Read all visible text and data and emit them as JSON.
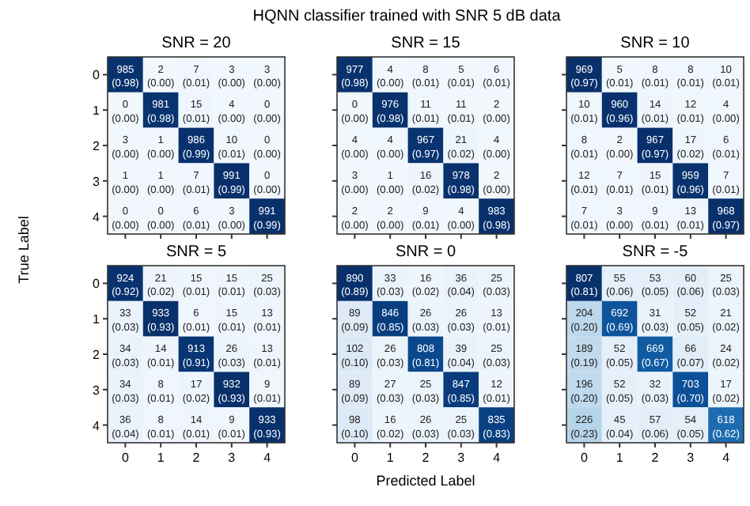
{
  "chart_data": [
    {
      "type": "heatmap",
      "title": "SNR = 20",
      "data_labels": true,
      "ylabel": "True Label",
      "tick_labels": "y",
      "categories": [
        "0",
        "1",
        "2",
        "3",
        "4"
      ],
      "y_categories": [
        "0",
        "1",
        "2",
        "3",
        "4"
      ],
      "cells": [
        [
          985,
          2,
          7,
          3,
          3
        ],
        [
          0,
          981,
          15,
          4,
          0
        ],
        [
          3,
          1,
          986,
          10,
          0
        ],
        [
          1,
          1,
          7,
          991,
          0
        ],
        [
          0,
          0,
          6,
          3,
          991
        ]
      ],
      "annotations": [
        "HQNN classifier trained with SNR 5 dB data",
        "(0.98)",
        "(0.00)",
        "(0.01)",
        "(0.00)",
        "(0.00)",
        "(0.00)",
        "(0.98)",
        "(0.01)",
        "(0.00)",
        "(0.00)",
        "(0.00)",
        "(0.00)",
        "(0.99)",
        "(0.01)",
        "(0.00)",
        "(0.00)",
        "(0.00)",
        "(0.01)",
        "(0.99)",
        "(0.00)",
        "(0.00)",
        "(0.00)",
        "(0.01)",
        "(0.00)",
        "(0.99)"
      ]
    },
    {
      "type": "heatmap",
      "title": "SNR = 15",
      "data_labels": true,
      "tick_labels": false,
      "categories": [
        "0",
        "1",
        "2",
        "3",
        "4"
      ],
      "y_categories": [
        "0",
        "1",
        "2",
        "3",
        "4"
      ],
      "cells": [
        [
          977,
          4,
          8,
          5,
          6
        ],
        [
          0,
          976,
          11,
          11,
          2
        ],
        [
          4,
          4,
          967,
          21,
          4
        ],
        [
          3,
          1,
          16,
          978,
          2
        ],
        [
          2,
          2,
          9,
          4,
          983
        ]
      ],
      "annotations": [
        "(0.98)",
        "(0.00)",
        "(0.01)",
        "(0.01)",
        "(0.01)",
        "(0.00)",
        "(0.98)",
        "(0.01)",
        "(0.01)",
        "(0.00)",
        "(0.00)",
        "(0.00)",
        "(0.97)",
        "(0.02)",
        "(0.00)",
        "(0.00)",
        "(0.00)",
        "(0.02)",
        "(0.98)",
        "(0.00)",
        "(0.00)",
        "(0.00)",
        "(0.01)",
        "(0.00)",
        "(0.98)"
      ]
    },
    {
      "type": "heatmap",
      "title": "SNR = 10",
      "data_labels": true,
      "tick_labels": false,
      "categories": [
        "0",
        "1",
        "2",
        "3",
        "4"
      ],
      "y_categories": [
        "0",
        "1",
        "2",
        "3",
        "4"
      ],
      "cells": [
        [
          969,
          5,
          8,
          8,
          10
        ],
        [
          10,
          960,
          14,
          12,
          4
        ],
        [
          8,
          2,
          967,
          17,
          6
        ],
        [
          12,
          7,
          15,
          959,
          7
        ],
        [
          7,
          3,
          9,
          13,
          968
        ]
      ],
      "annotations": [
        "(0.97)",
        "(0.01)",
        "(0.01)",
        "(0.01)",
        "(0.01)",
        "(0.01)",
        "(0.96)",
        "(0.01)",
        "(0.01)",
        "(0.00)",
        "(0.01)",
        "(0.00)",
        "(0.97)",
        "(0.02)",
        "(0.01)",
        "(0.01)",
        "(0.01)",
        "(0.01)",
        "(0.96)",
        "(0.01)",
        "(0.01)",
        "(0.00)",
        "(0.01)",
        "(0.01)",
        "(0.97)"
      ]
    },
    {
      "type": "heatmap",
      "title": "SNR = 5",
      "data_labels": true,
      "categories": [
        "0",
        "1",
        "2",
        "3",
        "4"
      ],
      "y_categories": [
        "0",
        "1",
        "2",
        "3",
        "4"
      ],
      "cells": [
        [
          924,
          21,
          15,
          15,
          25
        ],
        [
          33,
          933,
          6,
          15,
          13
        ],
        [
          34,
          14,
          913,
          26,
          13
        ],
        [
          34,
          8,
          17,
          932,
          9
        ],
        [
          36,
          8,
          14,
          9,
          933
        ]
      ],
      "annotations": [
        "(0.92)",
        "(0.02)",
        "(0.01)",
        "(0.01)",
        "(0.03)",
        "(0.03)",
        "(0.93)",
        "(0.01)",
        "(0.01)",
        "(0.01)",
        "(0.03)",
        "(0.01)",
        "(0.91)",
        "(0.03)",
        "(0.01)",
        "(0.03)",
        "(0.01)",
        "(0.02)",
        "(0.93)",
        "(0.01)",
        "(0.04)",
        "(0.01)",
        "(0.01)",
        "(0.01)",
        "(0.93)"
      ]
    },
    {
      "type": "heatmap",
      "title": "SNR = 0",
      "data_labels": true,
      "xlabel": "Predicted Label",
      "tick_labels": "x",
      "categories": [
        "0",
        "1",
        "2",
        "3",
        "4"
      ],
      "y_categories": [
        "0",
        "1",
        "2",
        "3",
        "4"
      ],
      "cells": [
        [
          890,
          33,
          16,
          36,
          25
        ],
        [
          89,
          846,
          26,
          26,
          13
        ],
        [
          102,
          26,
          808,
          39,
          25
        ],
        [
          89,
          27,
          25,
          847,
          12
        ],
        [
          98,
          16,
          26,
          25,
          835
        ]
      ],
      "annotations": [
        "(0.89)",
        "(0.03)",
        "(0.02)",
        "(0.04)",
        "(0.03)",
        "(0.09)",
        "(0.85)",
        "(0.03)",
        "(0.03)",
        "(0.01)",
        "(0.10)",
        "(0.03)",
        "(0.81)",
        "(0.04)",
        "(0.03)",
        "(0.09)",
        "(0.03)",
        "(0.03)",
        "(0.85)",
        "(0.01)",
        "(0.10)",
        "(0.02)",
        "(0.03)",
        "(0.03)",
        "(0.83)"
      ]
    },
    {
      "type": "heatmap",
      "title": "SNR = -5",
      "data_labels": true,
      "tick_labels": "x",
      "categories": [
        "0",
        "1",
        "2",
        "3",
        "4"
      ],
      "y_categories": [
        "0",
        "1",
        "2",
        "3",
        "4"
      ],
      "cells": [
        [
          807,
          55,
          53,
          60,
          25
        ],
        [
          204,
          692,
          31,
          52,
          21
        ],
        [
          189,
          52,
          669,
          66,
          24
        ],
        [
          196,
          52,
          32,
          703,
          17
        ],
        [
          226,
          45,
          57,
          54,
          618
        ]
      ],
      "annotations": [
        "(0.81)",
        "(0.06)",
        "(0.05)",
        "(0.06)",
        "(0.03)",
        "(0.20)",
        "(0.69)",
        "(0.03)",
        "(0.05)",
        "(0.02)",
        "(0.19)",
        "(0.05)",
        "(0.67)",
        "(0.07)",
        "(0.02)",
        "(0.20)",
        "(0.05)",
        "(0.03)",
        "(0.70)",
        "(0.02)",
        "(0.23)",
        "(0.04)",
        "(0.06)",
        "(0.05)",
        "(0.62)"
      ]
    }
  ]
}
